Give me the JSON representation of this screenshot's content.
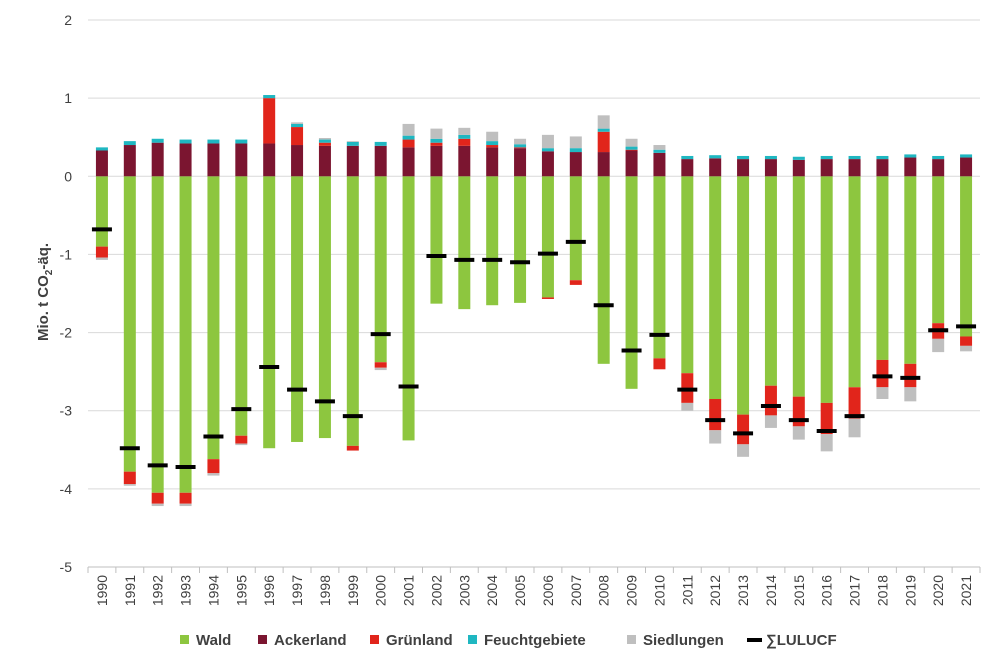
{
  "chart_data": {
    "type": "bar",
    "stacked": true,
    "title": "",
    "xlabel": "",
    "ylabel": "Mio. t CO",
    "ylabel_sub": "2",
    "ylabel_suffix": "-äq.",
    "ylim": [
      -5,
      2
    ],
    "yticks": [
      "2",
      "1",
      "0",
      "-1",
      "-2",
      "-3",
      "-4",
      "-5"
    ],
    "ytick_values": [
      2,
      1,
      0,
      -1,
      -2,
      -3,
      -4,
      -5
    ],
    "grid": true,
    "legend_position": "bottom",
    "categories": [
      "1990",
      "1991",
      "1992",
      "1993",
      "1994",
      "1995",
      "1996",
      "1997",
      "1998",
      "1999",
      "2000",
      "2001",
      "2002",
      "2003",
      "2004",
      "2005",
      "2006",
      "2007",
      "2008",
      "2009",
      "2010",
      "2011",
      "2012",
      "2013",
      "2014",
      "2015",
      "2016",
      "2017",
      "2018",
      "2019",
      "2020",
      "2021"
    ],
    "series": [
      {
        "name": "Wald",
        "color": "#8dc63f",
        "values": [
          -0.9,
          -3.78,
          -4.05,
          -4.05,
          -3.62,
          -3.32,
          -3.48,
          -3.4,
          -3.35,
          -3.45,
          -2.38,
          -3.38,
          -1.63,
          -1.7,
          -1.65,
          -1.62,
          -1.55,
          -1.33,
          -2.4,
          -2.72,
          -2.33,
          -2.52,
          -2.85,
          -3.05,
          -2.68,
          -2.82,
          -2.9,
          -2.7,
          -2.35,
          -2.4,
          -1.88,
          -2.05
        ]
      },
      {
        "name": "Ackerland",
        "color": "#7b1530",
        "values": [
          0.33,
          0.4,
          0.43,
          0.42,
          0.42,
          0.42,
          0.42,
          0.4,
          0.39,
          0.39,
          0.39,
          0.37,
          0.39,
          0.39,
          0.37,
          0.36,
          0.32,
          0.31,
          0.31,
          0.33,
          0.3,
          0.22,
          0.23,
          0.22,
          0.22,
          0.21,
          0.22,
          0.22,
          0.22,
          0.24,
          0.22,
          0.24
        ]
      },
      {
        "name": "Grünland",
        "color": "#e1251b",
        "values": [
          -0.14,
          -0.16,
          -0.14,
          -0.14,
          -0.18,
          -0.1,
          0.58,
          0.23,
          0.04,
          -0.06,
          -0.07,
          0.1,
          0.04,
          0.09,
          0.03,
          0.01,
          -0.02,
          -0.06,
          0.26,
          0.01,
          -0.14,
          -0.38,
          -0.4,
          -0.38,
          -0.38,
          -0.38,
          -0.4,
          -0.4,
          -0.35,
          -0.3,
          -0.2,
          -0.12
        ]
      },
      {
        "name": "Feuchtgebiete",
        "color": "#1fb7c1",
        "values": [
          0.04,
          0.05,
          0.05,
          0.05,
          0.05,
          0.05,
          0.04,
          0.04,
          0.04,
          0.05,
          0.05,
          0.05,
          0.05,
          0.05,
          0.05,
          0.04,
          0.04,
          0.05,
          0.04,
          0.04,
          0.04,
          0.04,
          0.04,
          0.04,
          0.04,
          0.04,
          0.04,
          0.04,
          0.04,
          0.04,
          0.04,
          0.04
        ]
      },
      {
        "name": "Siedlungen",
        "color": "#bfbfbf",
        "values": [
          -0.03,
          -0.02,
          -0.03,
          -0.03,
          -0.03,
          -0.02,
          0.0,
          0.02,
          0.02,
          0.01,
          -0.03,
          0.15,
          0.13,
          0.09,
          0.12,
          0.07,
          0.17,
          0.15,
          0.17,
          0.1,
          0.06,
          -0.1,
          -0.17,
          -0.16,
          -0.16,
          -0.17,
          -0.22,
          -0.24,
          -0.15,
          -0.18,
          -0.17,
          -0.07
        ]
      }
    ],
    "total_series": {
      "name": "∑LULUCF",
      "color": "#000000",
      "values": [
        -0.68,
        -3.48,
        -3.7,
        -3.72,
        -3.33,
        -2.98,
        -2.44,
        -2.73,
        -2.88,
        -3.07,
        -2.02,
        -2.69,
        -1.02,
        -1.07,
        -1.07,
        -1.1,
        -0.99,
        -0.84,
        -1.65,
        -2.23,
        -2.03,
        -2.73,
        -3.12,
        -3.29,
        -2.94,
        -3.12,
        -3.26,
        -3.07,
        -2.56,
        -2.58,
        -1.97,
        -1.92
      ]
    }
  }
}
